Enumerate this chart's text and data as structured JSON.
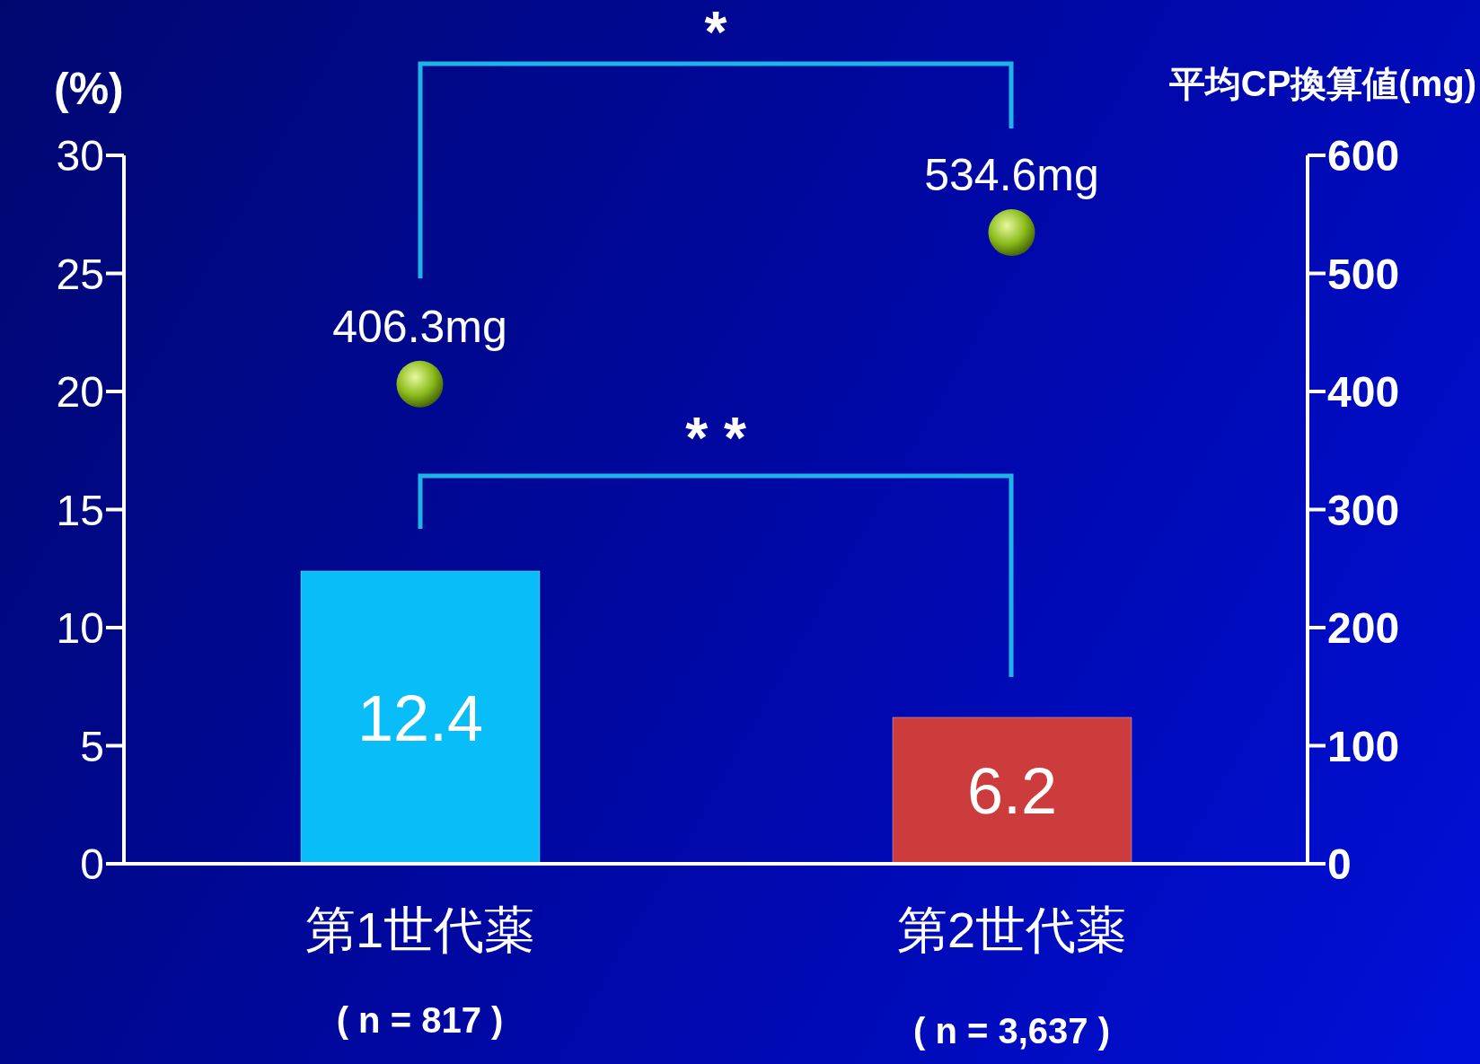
{
  "chart_data": {
    "type": "bar",
    "ylabel": "(%)",
    "y2label": "平均CP換算値(mg)",
    "categories": [
      "第1世代薬",
      "第2世代薬"
    ],
    "series": [
      {
        "values": [
          12.4,
          6.2
        ],
        "colors": [
          "#08bdf8",
          "#cc3c3c"
        ]
      },
      {
        "type": "scatter",
        "axis": "y2",
        "color": "#8cbc1c",
        "values": [
          406.3,
          534.6
        ],
        "value_labels": [
          "406.3mg",
          "534.6mg"
        ]
      }
    ],
    "data_labels": true,
    "marker": "circle",
    "ylim": [
      0,
      30
    ],
    "yticks": [
      0,
      5,
      10,
      15,
      20,
      25,
      30
    ],
    "y2lim": [
      0,
      600
    ],
    "y2ticks": [
      0,
      100,
      200,
      300,
      400,
      500,
      600
    ],
    "grid": false,
    "legend": false,
    "annotations": [
      "( n = 817 )",
      "( n = 3,637 )",
      "*",
      "* *"
    ]
  }
}
